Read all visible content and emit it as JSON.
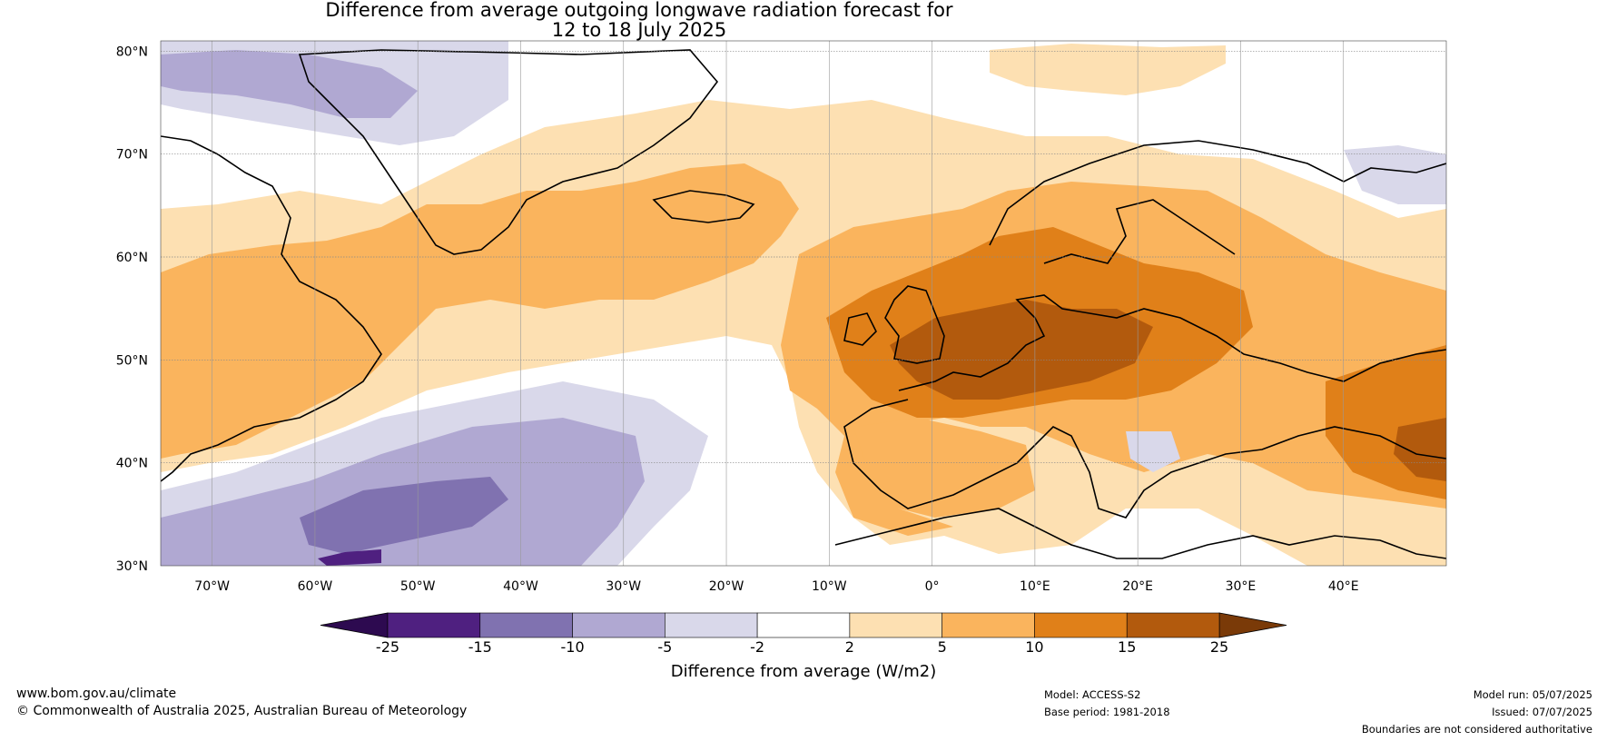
{
  "title": {
    "line1": "Difference from average outgoing longwave radiation forecast for",
    "line2": "12 to 18 July 2025"
  },
  "map": {
    "lat_labels": [
      "80°N",
      "70°N",
      "60°N",
      "50°N",
      "40°N",
      "30°N"
    ],
    "lon_labels": [
      "70°W",
      "60°W",
      "50°W",
      "40°W",
      "30°W",
      "20°W",
      "10°W",
      "0°",
      "10°E",
      "20°E",
      "30°E",
      "40°E"
    ],
    "extent": {
      "lon_min": -75,
      "lon_max": 50,
      "lat_min": 30,
      "lat_max": 81
    }
  },
  "colorbar": {
    "ticks": [
      "-25",
      "-15",
      "-10",
      "-5",
      "-2",
      "2",
      "5",
      "10",
      "15",
      "25"
    ],
    "colors": [
      "#4f2080",
      "#8072b0",
      "#b0a8d2",
      "#d9d8ea",
      "#ffffff",
      "#fde0b2",
      "#fab45d",
      "#e08019",
      "#b25a0d"
    ],
    "under_color": "#2d0a50",
    "over_color": "#7a3a08",
    "label": "Difference from average (W/m2)"
  },
  "footer": {
    "website": "www.bom.gov.au/climate",
    "copyright": "© Commonwealth of Australia 2025, Australian Bureau of Meteorology",
    "model": "Model: ACCESS-S2",
    "base_period": "Base period: 1981-2018",
    "model_run": "Model run: 05/07/2025",
    "issued": "Issued: 07/07/2025",
    "disclaimer": "Boundaries are not considered authoritative"
  }
}
